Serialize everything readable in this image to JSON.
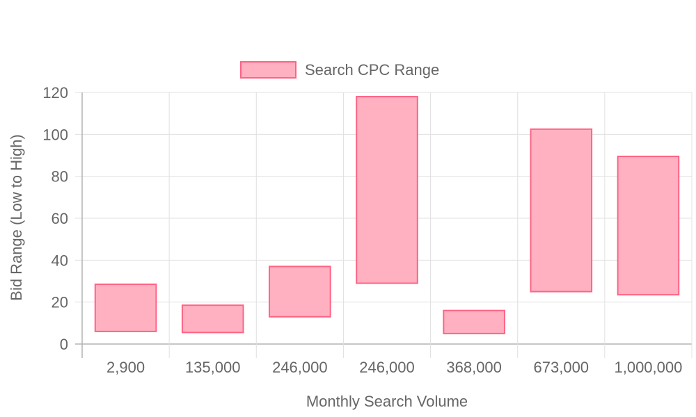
{
  "chart_data": {
    "type": "bar",
    "chart_style": "floating-range",
    "categories": [
      "2,900",
      "135,000",
      "246,000",
      "246,000",
      "368,000",
      "673,000",
      "1,000,000"
    ],
    "series": [
      {
        "name": "Search CPC Range",
        "ranges": [
          [
            6,
            28.5
          ],
          [
            5.5,
            18.5
          ],
          [
            13,
            37
          ],
          [
            29,
            118
          ],
          [
            5,
            16
          ],
          [
            25,
            102.5
          ],
          [
            23.5,
            89.5
          ]
        ]
      }
    ],
    "xlabel": "Monthly Search Volume",
    "ylabel": "Bid Range (Low to High)",
    "ylim": [
      0,
      120
    ],
    "yticks": [
      "0",
      "20",
      "40",
      "60",
      "80",
      "100",
      "120"
    ],
    "grid": true,
    "legend_position": "top-center",
    "colors": {
      "fill": "#ffb1c1",
      "border": "#ff6384",
      "grid": "#e0e0e0",
      "axis": "#b3b3b3",
      "text": "#666666"
    }
  }
}
